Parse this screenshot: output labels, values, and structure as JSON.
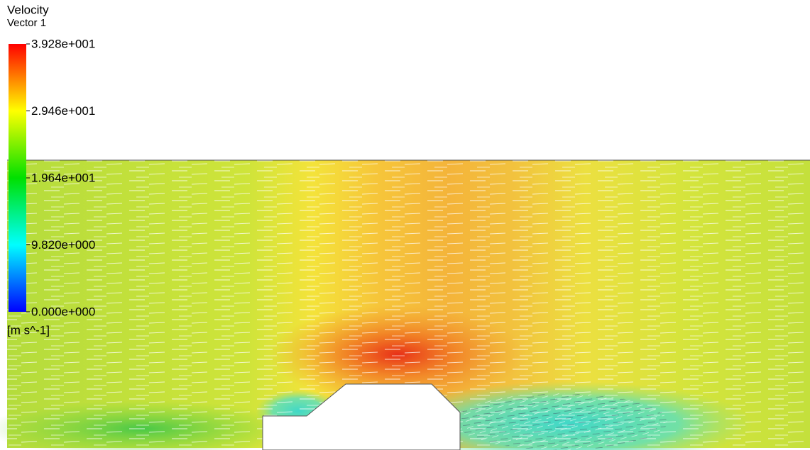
{
  "legend": {
    "title": "Velocity",
    "subtitle": "Vector 1",
    "unit": "[m s^-1]",
    "ticks": [
      {
        "value": 39.28,
        "label": "3.928e+001"
      },
      {
        "value": 29.46,
        "label": "2.946e+001"
      },
      {
        "value": 19.64,
        "label": "1.964e+001"
      },
      {
        "value": 9.82,
        "label": "9.820e+000"
      },
      {
        "value": 0,
        "label": "0.000e+000"
      }
    ]
  }
}
